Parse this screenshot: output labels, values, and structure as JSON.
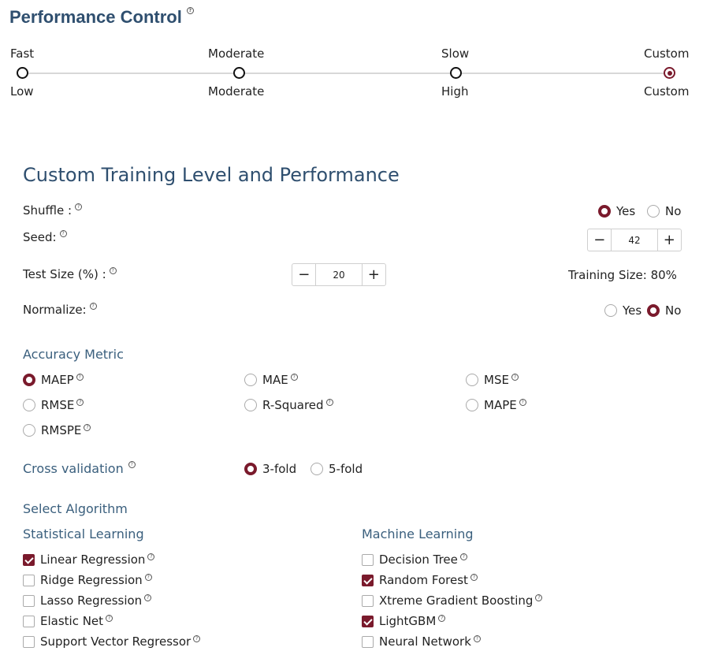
{
  "header": {
    "title": "Performance Control"
  },
  "performance": {
    "levels": [
      {
        "top": "Fast",
        "bottom": "Low",
        "selected": false
      },
      {
        "top": "Moderate",
        "bottom": "Moderate",
        "selected": false
      },
      {
        "top": "Slow",
        "bottom": "High",
        "selected": false
      },
      {
        "top": "Custom",
        "bottom": "Custom",
        "selected": true
      }
    ]
  },
  "custom": {
    "title": "Custom Training Level and Performance",
    "shuffle": {
      "label": "Shuffle :",
      "yes": "Yes",
      "no": "No",
      "value": "Yes"
    },
    "seed": {
      "label": "Seed:",
      "value": "42",
      "minus": "−",
      "plus": "+"
    },
    "test_size": {
      "label": "Test Size (%) :",
      "value": "20",
      "minus": "−",
      "plus": "+",
      "training_label": "Training Size: 80%"
    },
    "normalize": {
      "label": "Normalize:",
      "yes": "Yes",
      "no": "No",
      "value": "No"
    },
    "accuracy": {
      "label": "Accuracy Metric",
      "options": [
        "MAEP",
        "MAE",
        "MSE",
        "RMSE",
        "R-Squared",
        "MAPE",
        "RMSPE"
      ],
      "selected": "MAEP"
    },
    "cross_validation": {
      "label": "Cross validation",
      "options": [
        "3-fold",
        "5-fold"
      ],
      "selected": "3-fold"
    },
    "algorithm": {
      "label": "Select Algorithm",
      "statistical": {
        "label": "Statistical Learning",
        "items": [
          {
            "name": "Linear Regression",
            "checked": true
          },
          {
            "name": "Ridge Regression",
            "checked": false
          },
          {
            "name": "Lasso Regression",
            "checked": false
          },
          {
            "name": "Elastic Net",
            "checked": false
          },
          {
            "name": "Support Vector Regressor",
            "checked": false
          }
        ]
      },
      "machine": {
        "label": "Machine Learning",
        "items": [
          {
            "name": "Decision Tree",
            "checked": false
          },
          {
            "name": "Random Forest",
            "checked": true
          },
          {
            "name": "Xtreme Gradient Boosting",
            "checked": false
          },
          {
            "name": "LightGBM",
            "checked": true
          },
          {
            "name": "Neural Network",
            "checked": false
          }
        ]
      }
    }
  },
  "icons": {
    "help": "question-circle-icon",
    "accent": "#7a1a2c",
    "heading": "#2f4f6f"
  }
}
